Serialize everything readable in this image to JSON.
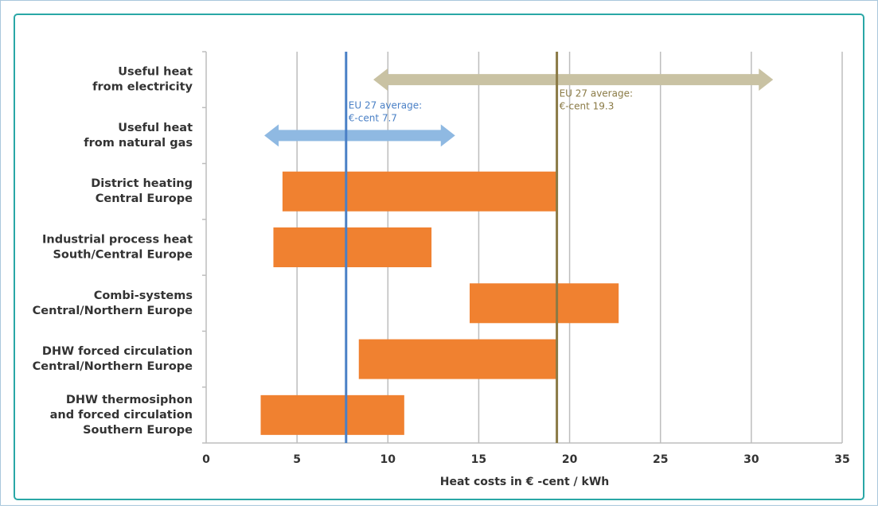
{
  "chart_data": {
    "type": "range-bar",
    "categories": [
      [
        "Useful heat",
        "from electricity"
      ],
      [
        "Useful heat",
        "from natural gas"
      ],
      [
        "District heating",
        "Central Europe"
      ],
      [
        "Industrial process heat",
        "South/Central Europe"
      ],
      [
        "Combi-systems",
        "Central/Northern Europe"
      ],
      [
        "DHW forced circulation",
        "Central/Northern Europe"
      ],
      [
        "DHW thermosiphon",
        "and forced circulation",
        "Southern Europe"
      ]
    ],
    "values": [
      [
        9.2,
        31.2
      ],
      [
        3.2,
        13.7
      ],
      [
        4.2,
        19.3
      ],
      [
        3.7,
        12.4
      ],
      [
        14.5,
        22.7
      ],
      [
        8.4,
        19.3
      ],
      [
        3.0,
        10.9
      ]
    ],
    "shapes": [
      "double-arrow",
      "double-arrow",
      "bar",
      "bar",
      "bar",
      "bar",
      "bar"
    ],
    "colors": [
      "#c9c2a3",
      "#8fb9e2",
      "#f08130",
      "#f08130",
      "#f08130",
      "#f08130",
      "#f08130"
    ],
    "reference_lines": [
      {
        "value": 7.7,
        "label": [
          "EU 27 average:",
          "€-cent 7.7"
        ],
        "color": "#4a80c6"
      },
      {
        "value": 19.3,
        "label": [
          "EU 27 average:",
          "€-cent 19.3"
        ],
        "color": "#8a7a45"
      }
    ],
    "x_label": "Heat costs in € -cent / kWh",
    "xlim": [
      0,
      35
    ],
    "xticks": [
      0,
      5,
      10,
      15,
      20,
      25,
      30,
      35
    ],
    "grid": true
  }
}
